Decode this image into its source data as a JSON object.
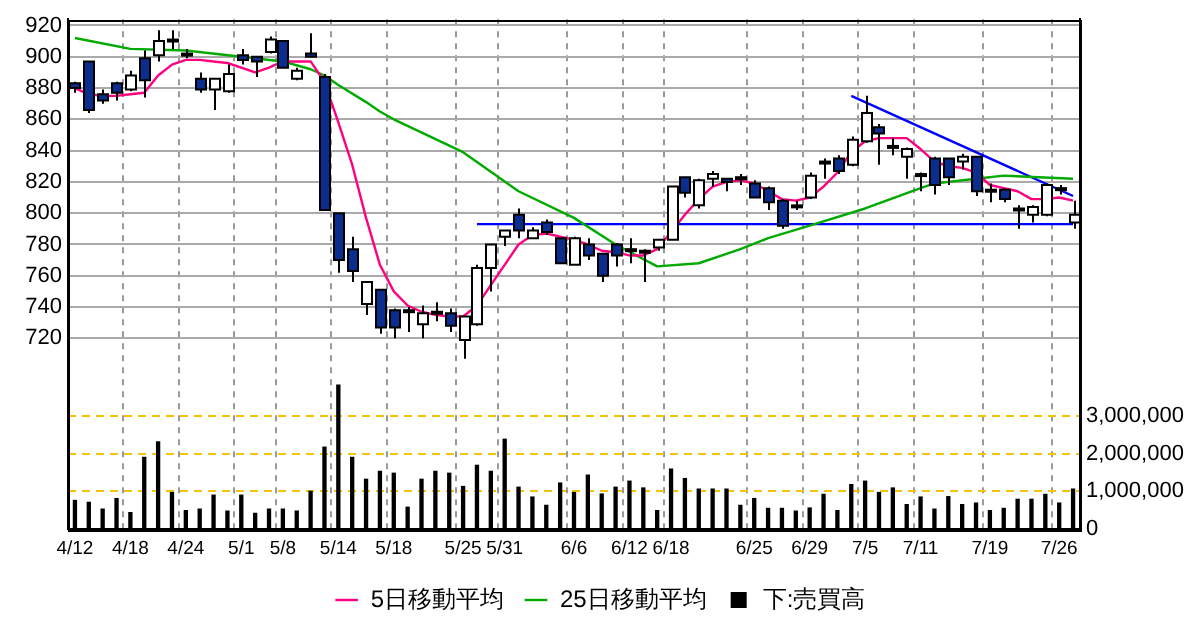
{
  "chart_data": {
    "type": "candlestick",
    "categories": [
      "4/12",
      null,
      null,
      null,
      "4/18",
      null,
      null,
      null,
      "4/24",
      null,
      null,
      null,
      "5/1",
      null,
      null,
      "5/8",
      null,
      null,
      null,
      "5/14",
      null,
      null,
      null,
      "5/18",
      null,
      null,
      null,
      null,
      "5/25",
      null,
      null,
      "5/31",
      null,
      null,
      null,
      null,
      "6/6",
      null,
      null,
      null,
      "6/12",
      null,
      null,
      "6/18",
      null,
      null,
      null,
      null,
      null,
      "6/25",
      null,
      null,
      null,
      "6/29",
      null,
      null,
      null,
      "7/5",
      null,
      null,
      null,
      "7/11",
      null,
      null,
      null,
      null,
      "7/19",
      null,
      null,
      null,
      null,
      "7/26",
      null
    ],
    "ohlc": [
      [
        883,
        884,
        877,
        880
      ],
      [
        897,
        897,
        864,
        866
      ],
      [
        876,
        879,
        870,
        872
      ],
      [
        883,
        884,
        872,
        877
      ],
      [
        879,
        891,
        878,
        888
      ],
      [
        899,
        904,
        874,
        885
      ],
      [
        901,
        917,
        897,
        910
      ],
      [
        910,
        917,
        905,
        911
      ],
      [
        902,
        905,
        899,
        902
      ],
      [
        886,
        890,
        877,
        879
      ],
      [
        879,
        886,
        866,
        886
      ],
      [
        878,
        895,
        877,
        889
      ],
      [
        901,
        905,
        895,
        898
      ],
      [
        900,
        900,
        887,
        897
      ],
      [
        903,
        913,
        902,
        911
      ],
      [
        910,
        910,
        893,
        893
      ],
      [
        886,
        893,
        885,
        891
      ],
      [
        902,
        915,
        900,
        900
      ],
      [
        887,
        889,
        802,
        802
      ],
      [
        800,
        800,
        762,
        770
      ],
      [
        777,
        785,
        756,
        763
      ],
      [
        742,
        756,
        735,
        756
      ],
      [
        751,
        751,
        723,
        727
      ],
      [
        738,
        739,
        720,
        727
      ],
      [
        738,
        740,
        724,
        737
      ],
      [
        729,
        741,
        720,
        736
      ],
      [
        737,
        743,
        731,
        737
      ],
      [
        736,
        739,
        724,
        728
      ],
      [
        719,
        734,
        707,
        734
      ],
      [
        729,
        767,
        728,
        765
      ],
      [
        765,
        780,
        750,
        780
      ],
      [
        785,
        789,
        779,
        789
      ],
      [
        799,
        803,
        784,
        789
      ],
      [
        784,
        791,
        784,
        789
      ],
      [
        794,
        796,
        786,
        788
      ],
      [
        784,
        784,
        768,
        768
      ],
      [
        767,
        785,
        767,
        784
      ],
      [
        780,
        784,
        770,
        773
      ],
      [
        774,
        774,
        756,
        760
      ],
      [
        780,
        781,
        766,
        773
      ],
      [
        776,
        784,
        768,
        777
      ],
      [
        776,
        777,
        756,
        776
      ],
      [
        778,
        783,
        776,
        783
      ],
      [
        783,
        817,
        783,
        817
      ],
      [
        823,
        823,
        810,
        813
      ],
      [
        805,
        822,
        803,
        821
      ],
      [
        822,
        827,
        817,
        825
      ],
      [
        822,
        822,
        814,
        820
      ],
      [
        822,
        825,
        818,
        823
      ],
      [
        819,
        821,
        810,
        810
      ],
      [
        816,
        817,
        802,
        807
      ],
      [
        808,
        809,
        790,
        792
      ],
      [
        804,
        808,
        802,
        805
      ],
      [
        810,
        826,
        809,
        824
      ],
      [
        832,
        835,
        822,
        833
      ],
      [
        835,
        837,
        825,
        827
      ],
      [
        831,
        849,
        830,
        847
      ],
      [
        846,
        875,
        845,
        864
      ],
      [
        855,
        857,
        831,
        851
      ],
      [
        843,
        848,
        837,
        843
      ],
      [
        836,
        842,
        822,
        841
      ],
      [
        825,
        826,
        814,
        825
      ],
      [
        835,
        836,
        812,
        818
      ],
      [
        835,
        835,
        818,
        823
      ],
      [
        833,
        838,
        828,
        836
      ],
      [
        836,
        836,
        811,
        814
      ],
      [
        815,
        819,
        807,
        814
      ],
      [
        815,
        816,
        807,
        809
      ],
      [
        803,
        805,
        790,
        802
      ],
      [
        799,
        805,
        794,
        804
      ],
      [
        799,
        819,
        798,
        818
      ],
      [
        816,
        818,
        812,
        815
      ],
      [
        794,
        808,
        790,
        799
      ]
    ],
    "colors": [
      "#0a2d8f",
      "#0a2d8f",
      "#0a2d8f",
      "#0a2d8f",
      "#ffffff",
      "#0a2d8f",
      "#ffffff",
      "#ffffff",
      "#ffffff",
      "#0a2d8f",
      "#ffffff",
      "#ffffff",
      "#0a2d8f",
      "#0a2d8f",
      "#ffffff",
      "#0a2d8f",
      "#ffffff",
      "#0a2d8f",
      "#0a2d8f",
      "#0a2d8f",
      "#0a2d8f",
      "#ffffff",
      "#0a2d8f",
      "#0a2d8f",
      "#0a2d8f",
      "#ffffff",
      "#ffffff",
      "#0a2d8f",
      "#ffffff",
      "#ffffff",
      "#ffffff",
      "#ffffff",
      "#0a2d8f",
      "#ffffff",
      "#0a2d8f",
      "#0a2d8f",
      "#ffffff",
      "#0a2d8f",
      "#0a2d8f",
      "#0a2d8f",
      "#ffffff",
      "#ffffff",
      "#ffffff",
      "#ffffff",
      "#0a2d8f",
      "#ffffff",
      "#ffffff",
      "#0a2d8f",
      "#ffffff",
      "#0a2d8f",
      "#0a2d8f",
      "#0a2d8f",
      "#ffffff",
      "#ffffff",
      "#ffffff",
      "#0a2d8f",
      "#ffffff",
      "#ffffff",
      "#0a2d8f",
      "#ffffff",
      "#ffffff",
      "#ffffff",
      "#0a2d8f",
      "#0a2d8f",
      "#ffffff",
      "#0a2d8f",
      "#0a2d8f",
      "#0a2d8f",
      "#0a2d8f",
      "#ffffff",
      "#ffffff",
      "#0a2d8f",
      "#ffffff"
    ],
    "series": [
      {
        "type": "line",
        "name": "5日移動平均",
        "color": "#ff0080",
        "values": [
          880,
          876,
          875,
          875,
          876,
          877,
          888,
          895,
          898,
          898,
          897,
          896,
          893,
          890,
          893,
          897,
          897,
          897,
          884,
          858,
          831,
          797,
          767,
          750,
          741,
          737,
          735,
          734,
          734,
          741,
          754,
          767,
          780,
          786,
          787,
          785,
          783,
          780,
          776,
          775,
          773,
          773,
          777,
          788,
          799,
          809,
          817,
          820,
          821,
          819,
          814,
          809,
          808,
          810,
          817,
          826,
          839,
          846,
          848,
          848,
          848,
          841,
          833,
          830,
          829,
          826,
          818,
          816,
          814,
          809,
          809,
          810,
          808
        ]
      },
      {
        "type": "line",
        "name": "25日移動平均",
        "color": "#00aa00",
        "values": [
          912,
          null,
          null,
          null,
          905,
          null,
          null,
          null,
          904,
          null,
          null,
          null,
          900,
          null,
          null,
          897,
          null,
          892,
          888,
          882,
          null,
          871,
          865,
          860,
          null,
          null,
          null,
          null,
          839,
          null,
          null,
          null,
          814,
          null,
          null,
          null,
          797,
          null,
          null,
          780,
          null,
          null,
          766,
          null,
          null,
          768,
          null,
          null,
          777,
          null,
          784,
          null,
          null,
          792,
          null,
          null,
          null,
          803,
          null,
          null,
          null,
          816,
          819,
          null,
          null,
          822,
          null,
          824,
          null,
          null,
          null,
          null,
          822
        ]
      },
      {
        "type": "bar",
        "name": "下:売買高",
        "color": "#000000",
        "axis": "y2",
        "values": [
          760000,
          710000,
          530000,
          810000,
          440000,
          1900000,
          2310000,
          970000,
          490000,
          530000,
          900000,
          480000,
          900000,
          420000,
          530000,
          530000,
          480000,
          1000000,
          2170000,
          3810000,
          1900000,
          1320000,
          1530000,
          1480000,
          580000,
          1320000,
          1530000,
          1480000,
          1130000,
          1690000,
          1530000,
          2380000,
          1110000,
          850000,
          630000,
          1220000,
          970000,
          1430000,
          930000,
          1110000,
          1270000,
          1090000,
          490000,
          1590000,
          1340000,
          1060000,
          1060000,
          1060000,
          630000,
          810000,
          550000,
          550000,
          480000,
          560000,
          920000,
          490000,
          1180000,
          1270000,
          970000,
          1090000,
          650000,
          850000,
          530000,
          860000,
          650000,
          690000,
          490000,
          550000,
          790000,
          790000,
          920000,
          690000,
          1060000
        ]
      },
      {
        "type": "line",
        "color": "#0000ff",
        "values": [
          null,
          null,
          null,
          null,
          null,
          null,
          null,
          null,
          null,
          null,
          null,
          null,
          null,
          null,
          null,
          null,
          null,
          null,
          null,
          null,
          null,
          null,
          null,
          null,
          null,
          null,
          null,
          null,
          null,
          793,
          null,
          null,
          null,
          null,
          null,
          null,
          null,
          null,
          null,
          null,
          null,
          null,
          null,
          null,
          null,
          null,
          null,
          null,
          null,
          null,
          null,
          null,
          null,
          null,
          null,
          null,
          null,
          null,
          null,
          null,
          null,
          null,
          null,
          null,
          null,
          null,
          null,
          null,
          null,
          null,
          null,
          null,
          793
        ]
      },
      {
        "type": "line",
        "color": "#0000ff",
        "values": [
          null,
          null,
          null,
          null,
          null,
          null,
          null,
          null,
          null,
          null,
          null,
          null,
          null,
          null,
          null,
          null,
          null,
          null,
          null,
          null,
          null,
          null,
          null,
          null,
          null,
          null,
          null,
          null,
          null,
          null,
          null,
          null,
          null,
          null,
          null,
          null,
          null,
          null,
          null,
          null,
          null,
          null,
          null,
          null,
          null,
          null,
          null,
          null,
          null,
          null,
          null,
          null,
          null,
          null,
          null,
          null,
          875,
          null,
          null,
          null,
          null,
          null,
          null,
          null,
          null,
          null,
          null,
          null,
          null,
          null,
          null,
          null,
          811
        ]
      }
    ],
    "ylim": [
      598,
      924
    ],
    "yticks": [
      720,
      740,
      760,
      780,
      800,
      820,
      840,
      860,
      880,
      900,
      920
    ],
    "y2lim": [
      0,
      13500000
    ],
    "y2ticks": [
      0,
      {
        "value": 1000000,
        "label": "1,000,000"
      },
      {
        "value": 2000000,
        "label": "2,000,000"
      },
      {
        "value": 3000000,
        "label": "3,000,000"
      }
    ],
    "grid": true,
    "legend": "bottom",
    "marker": "none"
  }
}
